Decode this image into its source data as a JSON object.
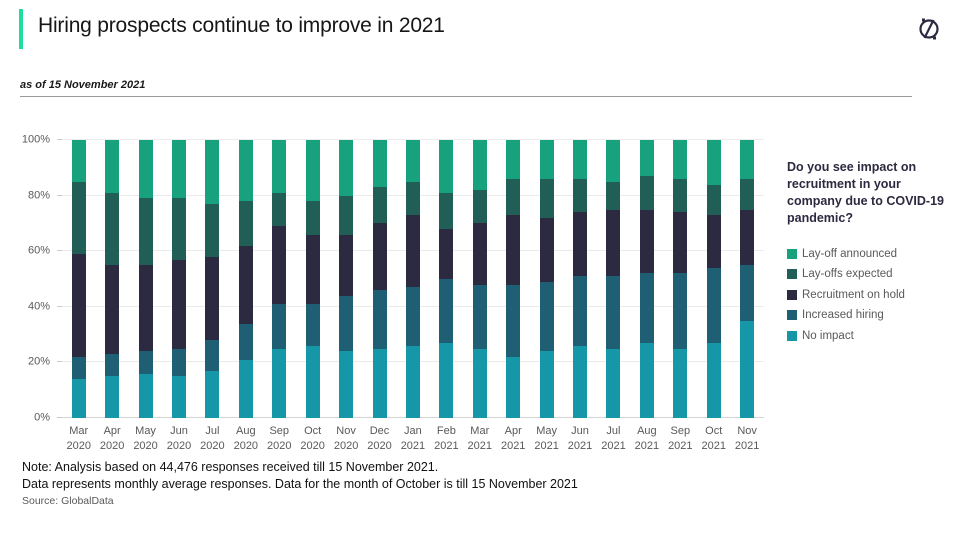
{
  "header": {
    "title": "Hiring prospects continue to improve in 2021",
    "subtitle": "as of 15 November 2021",
    "accent_color": "#1FDC9F",
    "logo_icon": "globaldata-compass-icon",
    "logo_color": "#2B2A40"
  },
  "legend": {
    "question": "Do you see impact on recruitment in your company due to COVID-19 pandemic?",
    "position": "right",
    "items": [
      {
        "label": "Lay-off announced",
        "color": "#17A17C"
      },
      {
        "label": "Lay-offs expected",
        "color": "#205E56"
      },
      {
        "label": "Recruitment on hold",
        "color": "#2B2A40"
      },
      {
        "label": "Increased hiring",
        "color": "#1E5F74"
      },
      {
        "label": "No impact",
        "color": "#1597A8"
      }
    ]
  },
  "chart_data": {
    "type": "bar",
    "stacked": true,
    "unit": "percent",
    "ylim": [
      0,
      100
    ],
    "y_ticks": [
      0,
      20,
      40,
      60,
      80,
      100
    ],
    "grid": "horizontal",
    "legend_position": "right",
    "stacking_order": "bottom-to-top",
    "categories": [
      "Mar 2020",
      "Apr 2020",
      "May 2020",
      "Jun 2020",
      "Jul 2020",
      "Aug 2020",
      "Sep 2020",
      "Oct 2020",
      "Nov 2020",
      "Dec 2020",
      "Jan 2021",
      "Feb 2021",
      "Mar 2021",
      "Apr 2021",
      "May 2021",
      "Jun 2021",
      "Jul 2021",
      "Aug 2021",
      "Sep 2021",
      "Oct 2021",
      "Nov 2021"
    ],
    "series": [
      {
        "name": "No impact",
        "color": "#1597A8",
        "values": [
          14,
          15,
          16,
          15,
          17,
          21,
          25,
          26,
          24,
          25,
          26,
          27,
          25,
          22,
          24,
          26,
          25,
          27,
          25,
          27,
          35
        ]
      },
      {
        "name": "Increased hiring",
        "color": "#1E5F74",
        "values": [
          8,
          8,
          8,
          10,
          11,
          13,
          16,
          15,
          20,
          21,
          21,
          23,
          23,
          26,
          25,
          25,
          26,
          25,
          27,
          27,
          20
        ]
      },
      {
        "name": "Recruitment on hold",
        "color": "#2B2A40",
        "values": [
          37,
          32,
          31,
          32,
          30,
          28,
          28,
          25,
          22,
          24,
          26,
          18,
          22,
          25,
          23,
          23,
          24,
          23,
          22,
          19,
          20
        ]
      },
      {
        "name": "Lay-offs expected",
        "color": "#205E56",
        "values": [
          26,
          26,
          24,
          22,
          19,
          16,
          12,
          12,
          14,
          13,
          12,
          13,
          12,
          13,
          14,
          12,
          10,
          12,
          12,
          11,
          11
        ]
      },
      {
        "name": "Lay-off announced",
        "color": "#17A17C",
        "values": [
          15,
          19,
          21,
          21,
          23,
          22,
          19,
          22,
          20,
          17,
          15,
          19,
          18,
          14,
          14,
          14,
          15,
          13,
          14,
          16,
          14
        ]
      }
    ]
  },
  "notes": {
    "line1": "Note: Analysis based on 44,476 responses received till 15 November 2021.",
    "line2": "Data represents monthly average responses. Data for the month of October is till 15 November 2021",
    "source": "Source: GlobalData"
  }
}
